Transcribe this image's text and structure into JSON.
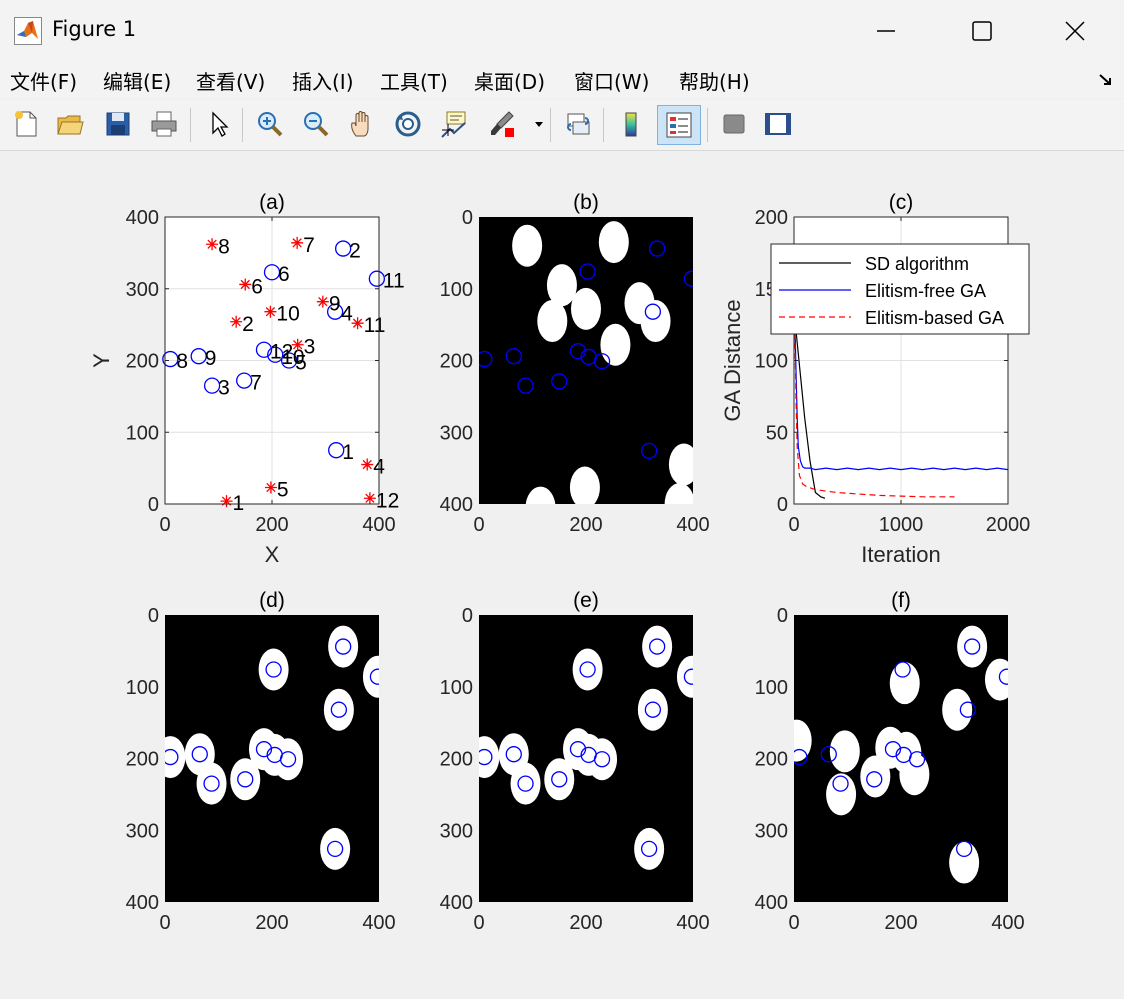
{
  "window": {
    "title": "Figure 1"
  },
  "menu": [
    "文件(F)",
    "编辑(E)",
    "查看(V)",
    "插入(I)",
    "工具(T)",
    "桌面(D)",
    "窗口(W)",
    "帮助(H)"
  ],
  "toolbar": [
    "new-file-icon",
    "open-folder-icon",
    "save-icon",
    "print-icon",
    "pointer-icon",
    "zoom-in-icon",
    "zoom-out-icon",
    "pan-hand-icon",
    "rotate-3d-icon",
    "data-cursor-icon",
    "brush-icon",
    "link-plot-icon",
    "colorbar-icon",
    "legend-icon",
    "hide-plot-tools-icon",
    "show-plot-tools-icon"
  ],
  "chart_data": [
    {
      "id": "a",
      "type": "scatter",
      "title": "(a)",
      "xlabel": "X",
      "ylabel": "Y",
      "xlim": [
        0,
        400
      ],
      "ylim": [
        0,
        400
      ],
      "xticks": [
        "0",
        "200",
        "400"
      ],
      "yticks": [
        "0",
        "100",
        "200",
        "300",
        "400"
      ],
      "grid": true,
      "series": [
        {
          "marker": "circle",
          "color": "#0000ff",
          "points": [
            {
              "x": 320,
              "y": 75,
              "label": "1"
            },
            {
              "x": 333,
              "y": 356,
              "label": "2"
            },
            {
              "x": 88,
              "y": 165,
              "label": "3"
            },
            {
              "x": 318,
              "y": 268,
              "label": "4"
            },
            {
              "x": 232,
              "y": 200,
              "label": "5"
            },
            {
              "x": 200,
              "y": 323,
              "label": "6"
            },
            {
              "x": 148,
              "y": 172,
              "label": "7"
            },
            {
              "x": 10,
              "y": 202,
              "label": "8"
            },
            {
              "x": 63,
              "y": 206,
              "label": "9"
            },
            {
              "x": 206,
              "y": 208,
              "label": "10"
            },
            {
              "x": 396,
              "y": 314,
              "label": "11"
            },
            {
              "x": 185,
              "y": 215,
              "label": "12"
            }
          ]
        },
        {
          "marker": "asterisk",
          "color": "#ff0000",
          "points": [
            {
              "x": 115,
              "y": 4,
              "label": "1"
            },
            {
              "x": 133,
              "y": 254,
              "label": "2"
            },
            {
              "x": 248,
              "y": 222,
              "label": "3"
            },
            {
              "x": 378,
              "y": 55,
              "label": "4"
            },
            {
              "x": 198,
              "y": 23,
              "label": "5"
            },
            {
              "x": 150,
              "y": 306,
              "label": "6"
            },
            {
              "x": 247,
              "y": 364,
              "label": "7"
            },
            {
              "x": 88,
              "y": 362,
              "label": "8"
            },
            {
              "x": 295,
              "y": 282,
              "label": "9"
            },
            {
              "x": 197,
              "y": 268,
              "label": "10"
            },
            {
              "x": 360,
              "y": 252,
              "label": "11"
            },
            {
              "x": 383,
              "y": 8,
              "label": "12"
            }
          ]
        }
      ]
    },
    {
      "id": "b",
      "type": "scatter",
      "title": "(b)",
      "xlim": [
        0,
        400
      ],
      "ylim": [
        400,
        0
      ],
      "xticks": [
        "0",
        "200",
        "400"
      ],
      "yticks": [
        "0",
        "100",
        "200",
        "300",
        "400"
      ],
      "background": "#000000",
      "blobs": [
        {
          "x": 90,
          "y": 40
        },
        {
          "x": 252,
          "y": 35
        },
        {
          "x": 155,
          "y": 95
        },
        {
          "x": 200,
          "y": 128
        },
        {
          "x": 137,
          "y": 145
        },
        {
          "x": 300,
          "y": 120
        },
        {
          "x": 330,
          "y": 145
        },
        {
          "x": 255,
          "y": 178
        },
        {
          "x": 383,
          "y": 345
        },
        {
          "x": 198,
          "y": 377
        },
        {
          "x": 115,
          "y": 405
        },
        {
          "x": 375,
          "y": 400
        }
      ],
      "circles": [
        {
          "x": 333,
          "y": 44
        },
        {
          "x": 203,
          "y": 76
        },
        {
          "x": 398,
          "y": 86
        },
        {
          "x": 325,
          "y": 132
        },
        {
          "x": 10,
          "y": 198
        },
        {
          "x": 65,
          "y": 194
        },
        {
          "x": 87,
          "y": 235
        },
        {
          "x": 150,
          "y": 229
        },
        {
          "x": 185,
          "y": 187
        },
        {
          "x": 205,
          "y": 195
        },
        {
          "x": 230,
          "y": 201
        },
        {
          "x": 318,
          "y": 326
        }
      ]
    },
    {
      "id": "c",
      "type": "line",
      "title": "(c)",
      "xlabel": "Iteration",
      "ylabel": "GA Distance",
      "xlim": [
        0,
        2000
      ],
      "ylim": [
        0,
        200
      ],
      "xticks": [
        "0",
        "1000",
        "2000"
      ],
      "yticks": [
        "0",
        "50",
        "100",
        "150",
        "200"
      ],
      "grid": true,
      "legend_position": "top-right",
      "series": [
        {
          "name": "SD algorithm",
          "color": "#000000",
          "style": "solid",
          "x": [
            0,
            20,
            60,
            100,
            150,
            200,
            250,
            290
          ],
          "y": [
            130,
            120,
            90,
            60,
            30,
            8,
            5,
            4
          ]
        },
        {
          "name": "Elitism-free GA",
          "color": "#0000ff",
          "style": "solid",
          "x": [
            0,
            10,
            20,
            30,
            40,
            60,
            80,
            100,
            150,
            200,
            300,
            400,
            500,
            600,
            700,
            800,
            900,
            1000,
            1100,
            1200,
            1300,
            1400,
            1500,
            1600,
            1700,
            1800,
            1900,
            2000
          ],
          "y": [
            140,
            120,
            90,
            60,
            40,
            30,
            26,
            25,
            25,
            24,
            25,
            24,
            25,
            24,
            25,
            24,
            25,
            24,
            25,
            24,
            25,
            24,
            25,
            24,
            25,
            24,
            25,
            24
          ]
        },
        {
          "name": "Elitism-based GA",
          "color": "#ff0000",
          "style": "dashed",
          "x": [
            0,
            10,
            20,
            30,
            50,
            80,
            120,
            200,
            300,
            400,
            600,
            800,
            1000,
            1200,
            1400,
            1500
          ],
          "y": [
            140,
            110,
            70,
            40,
            20,
            14,
            12,
            10,
            9,
            8,
            7,
            6,
            5.5,
            5,
            5,
            5
          ]
        }
      ]
    },
    {
      "id": "d",
      "type": "scatter",
      "title": "(d)",
      "xlim": [
        0,
        400
      ],
      "ylim": [
        400,
        0
      ],
      "xticks": [
        "0",
        "200",
        "400"
      ],
      "yticks": [
        "0",
        "100",
        "200",
        "300",
        "400"
      ],
      "background": "#000000",
      "blobs": [
        {
          "x": 333,
          "y": 44
        },
        {
          "x": 203,
          "y": 76
        },
        {
          "x": 398,
          "y": 86
        },
        {
          "x": 325,
          "y": 132
        },
        {
          "x": 10,
          "y": 198
        },
        {
          "x": 65,
          "y": 194
        },
        {
          "x": 87,
          "y": 235
        },
        {
          "x": 150,
          "y": 229
        },
        {
          "x": 185,
          "y": 187
        },
        {
          "x": 205,
          "y": 195
        },
        {
          "x": 230,
          "y": 201
        },
        {
          "x": 318,
          "y": 326
        }
      ],
      "circles": [
        {
          "x": 333,
          "y": 44
        },
        {
          "x": 203,
          "y": 76
        },
        {
          "x": 398,
          "y": 86
        },
        {
          "x": 325,
          "y": 132
        },
        {
          "x": 10,
          "y": 198
        },
        {
          "x": 65,
          "y": 194
        },
        {
          "x": 87,
          "y": 235
        },
        {
          "x": 150,
          "y": 229
        },
        {
          "x": 185,
          "y": 187
        },
        {
          "x": 205,
          "y": 195
        },
        {
          "x": 230,
          "y": 201
        },
        {
          "x": 318,
          "y": 326
        }
      ]
    },
    {
      "id": "e",
      "type": "scatter",
      "title": "(e)",
      "xlim": [
        0,
        400
      ],
      "ylim": [
        400,
        0
      ],
      "xticks": [
        "0",
        "200",
        "400"
      ],
      "yticks": [
        "0",
        "100",
        "200",
        "300",
        "400"
      ],
      "background": "#000000",
      "blobs": [
        {
          "x": 333,
          "y": 44
        },
        {
          "x": 203,
          "y": 76
        },
        {
          "x": 398,
          "y": 86
        },
        {
          "x": 325,
          "y": 132
        },
        {
          "x": 10,
          "y": 198
        },
        {
          "x": 65,
          "y": 194
        },
        {
          "x": 87,
          "y": 235
        },
        {
          "x": 150,
          "y": 229
        },
        {
          "x": 185,
          "y": 187
        },
        {
          "x": 205,
          "y": 195
        },
        {
          "x": 230,
          "y": 201
        },
        {
          "x": 318,
          "y": 326
        }
      ],
      "circles": [
        {
          "x": 333,
          "y": 44
        },
        {
          "x": 203,
          "y": 76
        },
        {
          "x": 398,
          "y": 86
        },
        {
          "x": 325,
          "y": 132
        },
        {
          "x": 10,
          "y": 198
        },
        {
          "x": 65,
          "y": 194
        },
        {
          "x": 87,
          "y": 235
        },
        {
          "x": 150,
          "y": 229
        },
        {
          "x": 185,
          "y": 187
        },
        {
          "x": 205,
          "y": 195
        },
        {
          "x": 230,
          "y": 201
        },
        {
          "x": 318,
          "y": 326
        }
      ]
    },
    {
      "id": "f",
      "type": "scatter",
      "title": "(f)",
      "xlim": [
        0,
        400
      ],
      "ylim": [
        400,
        0
      ],
      "xticks": [
        "0",
        "200",
        "400"
      ],
      "yticks": [
        "0",
        "100",
        "200",
        "300",
        "400"
      ],
      "background": "#000000",
      "blobs": [
        {
          "x": 333,
          "y": 44
        },
        {
          "x": 207,
          "y": 95
        },
        {
          "x": 385,
          "y": 90
        },
        {
          "x": 305,
          "y": 132
        },
        {
          "x": 5,
          "y": 175
        },
        {
          "x": 95,
          "y": 190
        },
        {
          "x": 88,
          "y": 250
        },
        {
          "x": 152,
          "y": 225
        },
        {
          "x": 180,
          "y": 185
        },
        {
          "x": 210,
          "y": 192
        },
        {
          "x": 225,
          "y": 222
        },
        {
          "x": 318,
          "y": 345
        }
      ],
      "circles": [
        {
          "x": 333,
          "y": 44
        },
        {
          "x": 203,
          "y": 76
        },
        {
          "x": 398,
          "y": 86
        },
        {
          "x": 325,
          "y": 132
        },
        {
          "x": 10,
          "y": 198
        },
        {
          "x": 65,
          "y": 194
        },
        {
          "x": 87,
          "y": 235
        },
        {
          "x": 150,
          "y": 229
        },
        {
          "x": 185,
          "y": 187
        },
        {
          "x": 205,
          "y": 195
        },
        {
          "x": 230,
          "y": 201
        },
        {
          "x": 318,
          "y": 326
        }
      ]
    }
  ]
}
